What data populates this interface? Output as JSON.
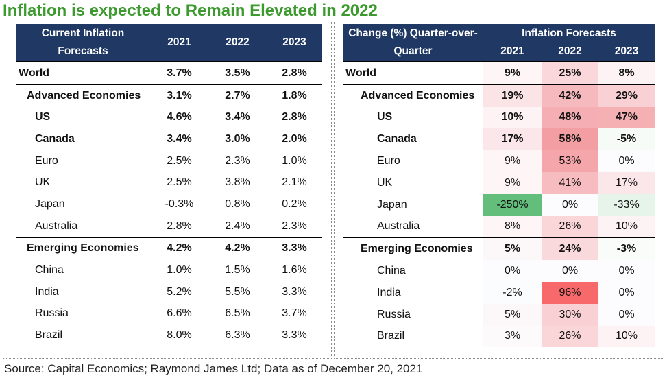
{
  "title": "Inflation is expected to Remain Elevated in 2022",
  "source": "Source: Capital Economics; Raymond James Ltd; Data as of December 20, 2021",
  "left_table": {
    "header_line1": "Current Inflation",
    "header_line2": "Forecasts",
    "years": [
      "2021",
      "2022",
      "2023"
    ],
    "rows": [
      {
        "label": "World",
        "values": [
          "3.7%",
          "3.5%",
          "2.8%"
        ],
        "bold": true,
        "level": 0
      },
      {
        "label": "Advanced Economies",
        "values": [
          "3.1%",
          "2.7%",
          "1.8%"
        ],
        "bold": true,
        "level": 1
      },
      {
        "label": "US",
        "values": [
          "4.6%",
          "3.4%",
          "2.8%"
        ],
        "bold": true,
        "level": 2
      },
      {
        "label": "Canada",
        "values": [
          "3.4%",
          "3.0%",
          "2.0%"
        ],
        "bold": true,
        "level": 2
      },
      {
        "label": "Euro",
        "values": [
          "2.5%",
          "2.3%",
          "1.0%"
        ],
        "bold": false,
        "level": 2
      },
      {
        "label": "UK",
        "values": [
          "2.5%",
          "3.8%",
          "2.1%"
        ],
        "bold": false,
        "level": 2
      },
      {
        "label": "Japan",
        "values": [
          "-0.3%",
          "0.8%",
          "0.2%"
        ],
        "bold": false,
        "level": 2
      },
      {
        "label": "Australia",
        "values": [
          "2.8%",
          "2.4%",
          "2.3%"
        ],
        "bold": false,
        "level": 2
      },
      {
        "label": "Emerging Economies",
        "values": [
          "4.2%",
          "4.2%",
          "3.3%"
        ],
        "bold": true,
        "level": 1
      },
      {
        "label": "China",
        "values": [
          "1.0%",
          "1.5%",
          "1.6%"
        ],
        "bold": false,
        "level": 2
      },
      {
        "label": "India",
        "values": [
          "5.2%",
          "5.5%",
          "3.3%"
        ],
        "bold": false,
        "level": 2
      },
      {
        "label": "Russia",
        "values": [
          "6.6%",
          "6.5%",
          "3.7%"
        ],
        "bold": false,
        "level": 2
      },
      {
        "label": "Brazil",
        "values": [
          "8.0%",
          "6.3%",
          "3.3%"
        ],
        "bold": false,
        "level": 2
      }
    ]
  },
  "right_table": {
    "header_line1": "Change (%) Quarter-over-",
    "header_line2": "Quarter",
    "group_header": "Inflation Forecasts",
    "years": [
      "2021",
      "2022",
      "2023"
    ],
    "rows": [
      {
        "label": "World",
        "values": [
          "9%",
          "25%",
          "8%"
        ],
        "colors": [
          "#fdf5f6",
          "#fad7da",
          "#fdf3f4"
        ],
        "bold": true,
        "level": 0
      },
      {
        "label": "Advanced Economies",
        "values": [
          "19%",
          "42%",
          "29%"
        ],
        "colors": [
          "#fbe4e6",
          "#f6b9bd",
          "#f9d1d4"
        ],
        "bold": true,
        "level": 1
      },
      {
        "label": "US",
        "values": [
          "10%",
          "48%",
          "47%"
        ],
        "colors": [
          "#fdf3f4",
          "#f5aeb3",
          "#f5b0b4"
        ],
        "bold": true,
        "level": 2
      },
      {
        "label": "Canada",
        "values": [
          "17%",
          "58%",
          "-5%"
        ],
        "colors": [
          "#fbe7e9",
          "#f39ea3",
          "#f7fbf7"
        ],
        "bold": true,
        "level": 2
      },
      {
        "label": "Euro",
        "values": [
          "9%",
          "53%",
          "0%"
        ],
        "colors": [
          "#fdf5f6",
          "#f4a6ab",
          "#fcfcff"
        ],
        "bold": false,
        "level": 2
      },
      {
        "label": "UK",
        "values": [
          "9%",
          "41%",
          "17%"
        ],
        "colors": [
          "#fdf5f6",
          "#f7bcc0",
          "#fbe7e9"
        ],
        "bold": false,
        "level": 2
      },
      {
        "label": "Japan",
        "values": [
          "-250%",
          "0%",
          "-33%"
        ],
        "colors": [
          "#63be7b",
          "#fcfcff",
          "#e7f4ea"
        ],
        "bold": false,
        "level": 2
      },
      {
        "label": "Australia",
        "values": [
          "8%",
          "26%",
          "10%"
        ],
        "colors": [
          "#fdf5f6",
          "#fad6d9",
          "#fdf3f4"
        ],
        "bold": false,
        "level": 2
      },
      {
        "label": "Emerging Economies",
        "values": [
          "5%",
          "24%",
          "-3%"
        ],
        "colors": [
          "#fcf8f9",
          "#fad9dc",
          "#f9fcf9"
        ],
        "bold": true,
        "level": 1
      },
      {
        "label": "China",
        "values": [
          "0%",
          "0%",
          "0%"
        ],
        "colors": [
          "#fcfcff",
          "#fcfcff",
          "#fcfcff"
        ],
        "bold": false,
        "level": 2
      },
      {
        "label": "India",
        "values": [
          "-2%",
          "96%",
          "0%"
        ],
        "colors": [
          "#fbfcfd",
          "#f8696b",
          "#fcfcff"
        ],
        "bold": false,
        "level": 2
      },
      {
        "label": "Russia",
        "values": [
          "5%",
          "30%",
          "0%"
        ],
        "colors": [
          "#fcf8f9",
          "#f9d0d3",
          "#fcfcff"
        ],
        "bold": false,
        "level": 2
      },
      {
        "label": "Brazil",
        "values": [
          "3%",
          "26%",
          "10%"
        ],
        "colors": [
          "#fcfafb",
          "#fad6d9",
          "#fdf3f4"
        ],
        "bold": false,
        "level": 2
      }
    ]
  },
  "chart_data": [
    {
      "type": "table",
      "title": "Inflation is expected to Remain Elevated in 2022",
      "header": "Current Inflation Forecasts",
      "columns": [
        "2021",
        "2022",
        "2023"
      ],
      "rows": [
        "World",
        "Advanced Economies",
        "US",
        "Canada",
        "Euro",
        "UK",
        "Japan",
        "Australia",
        "Emerging Economies",
        "China",
        "India",
        "Russia",
        "Brazil"
      ],
      "values": [
        [
          3.7,
          3.5,
          2.8
        ],
        [
          3.1,
          2.7,
          1.8
        ],
        [
          4.6,
          3.4,
          2.8
        ],
        [
          3.4,
          3.0,
          2.0
        ],
        [
          2.5,
          2.3,
          1.0
        ],
        [
          2.5,
          3.8,
          2.1
        ],
        [
          -0.3,
          0.8,
          0.2
        ],
        [
          2.8,
          2.4,
          2.3
        ],
        [
          4.2,
          4.2,
          3.3
        ],
        [
          1.0,
          1.5,
          1.6
        ],
        [
          5.2,
          5.5,
          3.3
        ],
        [
          6.6,
          6.5,
          3.7
        ],
        [
          8.0,
          6.3,
          3.3
        ]
      ]
    },
    {
      "type": "heatmap",
      "header": "Change (%) Quarter-over-Quarter",
      "group_header": "Inflation Forecasts",
      "columns": [
        "2021",
        "2022",
        "2023"
      ],
      "rows": [
        "World",
        "Advanced Economies",
        "US",
        "Canada",
        "Euro",
        "UK",
        "Japan",
        "Australia",
        "Emerging Economies",
        "China",
        "India",
        "Russia",
        "Brazil"
      ],
      "values": [
        [
          9,
          25,
          8
        ],
        [
          19,
          42,
          29
        ],
        [
          10,
          48,
          47
        ],
        [
          17,
          58,
          -5
        ],
        [
          9,
          53,
          0
        ],
        [
          9,
          41,
          17
        ],
        [
          -250,
          0,
          -33
        ],
        [
          8,
          26,
          10
        ],
        [
          5,
          24,
          -3
        ],
        [
          0,
          0,
          0
        ],
        [
          -2,
          96,
          0
        ],
        [
          5,
          30,
          0
        ],
        [
          3,
          26,
          10
        ]
      ]
    }
  ]
}
